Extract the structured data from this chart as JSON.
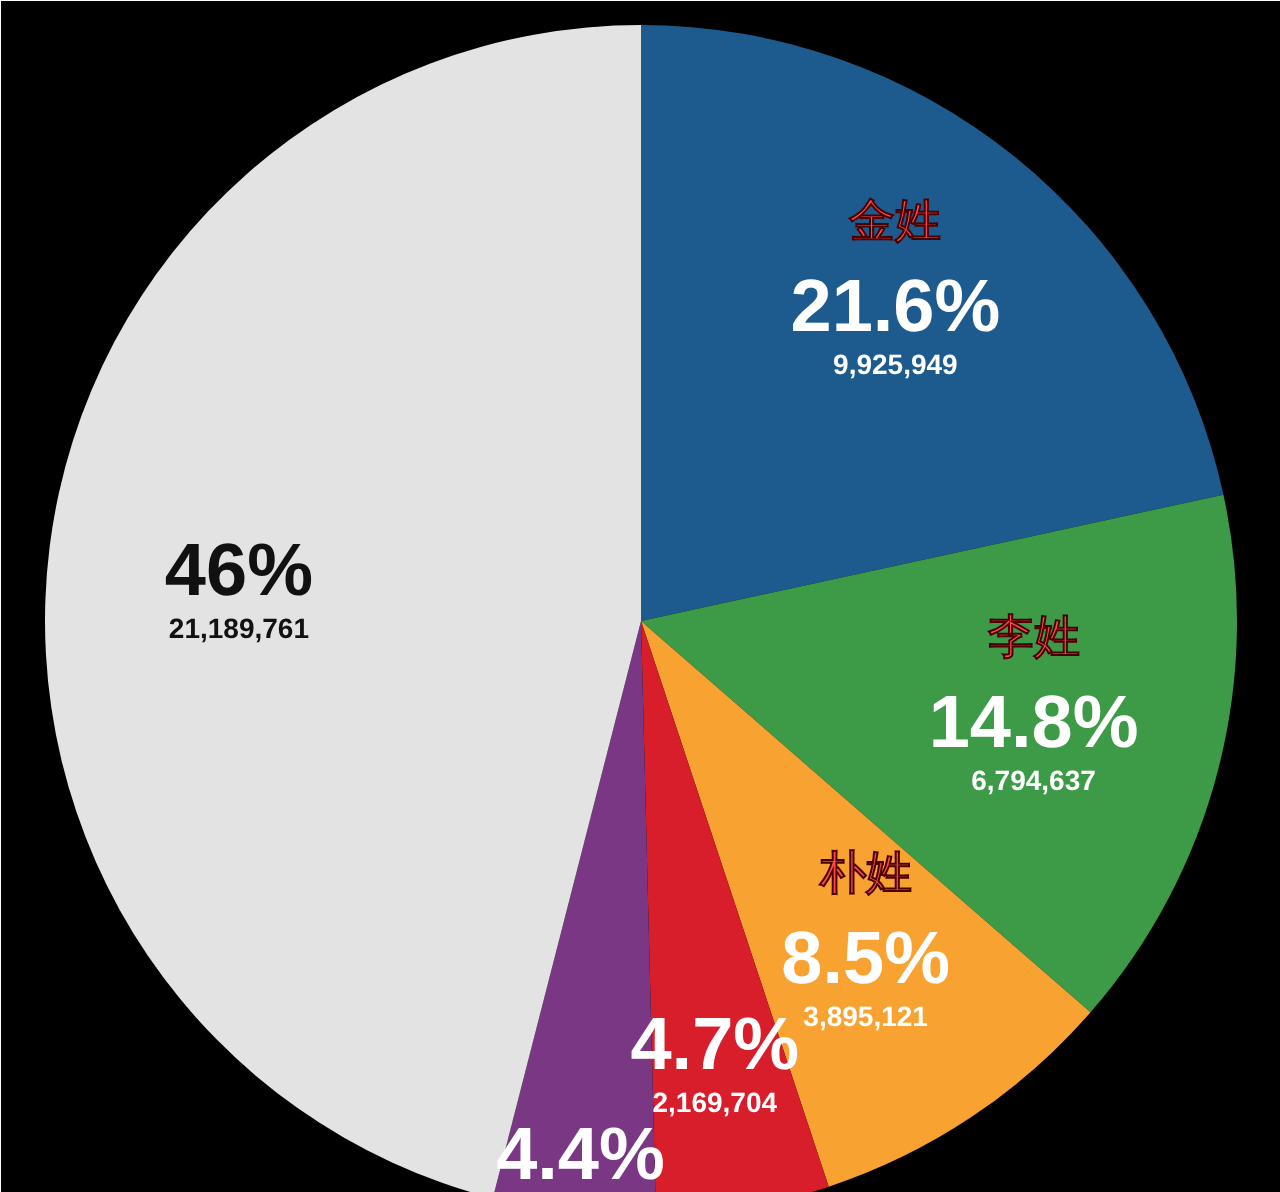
{
  "chart_data": {
    "type": "pie",
    "categories": [
      "金姓",
      "李姓",
      "朴姓",
      null,
      null,
      null
    ],
    "values": [
      21.6,
      14.8,
      8.5,
      4.7,
      4.4,
      46
    ],
    "colors": [
      "#1d5a8e",
      "#3d9a47",
      "#f8a232",
      "#d81e2b",
      "#7a3884",
      "#e3e3e3"
    ],
    "value_labels": [
      "21.6%\n9,925,949",
      "14.8%\n6,794,637",
      "8.5%\n3,895,121",
      "4.7%\n2,169,704",
      "4.4%",
      "46%\n21,189,761"
    ]
  }
}
